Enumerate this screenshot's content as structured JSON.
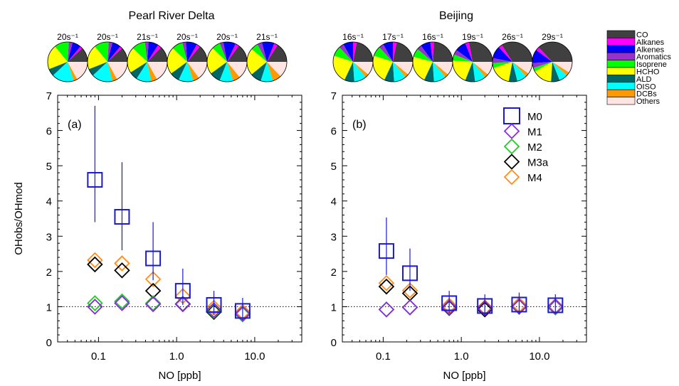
{
  "legend": {
    "categories": [
      {
        "name": "CO",
        "color": "#404040"
      },
      {
        "name": "Alkanes",
        "color": "#ff00ff"
      },
      {
        "name": "Alkenes",
        "color": "#0000ff"
      },
      {
        "name": "Aromatics",
        "color": "#9932cc"
      },
      {
        "name": "Isoprene",
        "color": "#00ff00"
      },
      {
        "name": "HCHO",
        "color": "#ffff00"
      },
      {
        "name": "ALD",
        "color": "#006666"
      },
      {
        "name": "OISO",
        "color": "#00ffff"
      },
      {
        "name": "DCBs",
        "color": "#ff9900"
      },
      {
        "name": "Others",
        "color": "#ffe4e1"
      }
    ]
  },
  "chart_data": [
    {
      "type": "scatter",
      "region": "Pearl River Delta",
      "panel_label": "(a)",
      "xlabel": "NO [ppb]",
      "ylabel": "OHobs/OHmod",
      "x_scale": "log",
      "xlim": [
        0.03,
        40
      ],
      "ylim": [
        0,
        7
      ],
      "x_ticks": [
        "0.1",
        "1.0",
        "10.0"
      ],
      "y_ticks": [
        "0",
        "1",
        "2",
        "3",
        "4",
        "5",
        "6",
        "7"
      ],
      "reference_line_y": 1,
      "x": [
        0.09,
        0.2,
        0.5,
        1.2,
        3.0,
        7.0
      ],
      "series": [
        {
          "name": "M0",
          "color": "#1a1acc",
          "marker": "square",
          "values": [
            4.6,
            3.55,
            2.37,
            1.45,
            1.05,
            0.88
          ],
          "err_low": [
            3.4,
            2.6,
            1.75,
            1.05,
            0.78,
            0.62
          ],
          "err_high": [
            6.7,
            5.1,
            3.4,
            2.08,
            1.45,
            1.25
          ]
        },
        {
          "name": "M1",
          "color": "#8a2be2",
          "marker": "diamond",
          "values": [
            1.0,
            1.1,
            1.07,
            1.07,
            0.9,
            0.8
          ]
        },
        {
          "name": "M2",
          "color": "#22cc22",
          "marker": "diamond",
          "values": [
            1.1,
            1.15,
            1.1,
            1.07,
            0.88,
            0.78
          ]
        },
        {
          "name": "M3a",
          "color": "#000000",
          "marker": "diamond",
          "values": [
            2.2,
            2.03,
            1.45,
            1.08,
            0.85,
            0.8
          ]
        },
        {
          "name": "M4",
          "color": "#ff8c1a",
          "marker": "diamond",
          "values": [
            2.32,
            2.23,
            1.78,
            1.3,
            0.97,
            0.85
          ]
        }
      ],
      "pies": {
        "labels": [
          "20s⁻¹",
          "20s⁻¹",
          "21s⁻¹",
          "20s⁻¹",
          "20s⁻¹",
          "21s⁻¹"
        ],
        "fractions": [
          [
            0.12,
            0.02,
            0.07,
            0.03,
            0.12,
            0.2,
            0.06,
            0.18,
            0.03,
            0.17
          ],
          [
            0.12,
            0.02,
            0.07,
            0.03,
            0.12,
            0.2,
            0.06,
            0.17,
            0.04,
            0.17
          ],
          [
            0.13,
            0.03,
            0.08,
            0.03,
            0.11,
            0.21,
            0.07,
            0.12,
            0.05,
            0.17
          ],
          [
            0.14,
            0.03,
            0.09,
            0.03,
            0.09,
            0.22,
            0.08,
            0.12,
            0.05,
            0.15
          ],
          [
            0.15,
            0.03,
            0.1,
            0.03,
            0.07,
            0.22,
            0.09,
            0.11,
            0.06,
            0.14
          ],
          [
            0.16,
            0.03,
            0.1,
            0.04,
            0.06,
            0.22,
            0.09,
            0.1,
            0.07,
            0.13
          ]
        ]
      }
    },
    {
      "type": "scatter",
      "region": "Beijing",
      "panel_label": "(b)",
      "xlabel": "NO [ppb]",
      "ylabel": "",
      "x_scale": "log",
      "xlim": [
        0.03,
        40
      ],
      "ylim": [
        0,
        7
      ],
      "x_ticks": [
        "0.1",
        "1.0",
        "10.0"
      ],
      "y_ticks": [
        "0",
        "1",
        "2",
        "3",
        "4",
        "5",
        "6",
        "7"
      ],
      "reference_line_y": 1,
      "x": [
        0.11,
        0.22,
        0.7,
        2.0,
        5.5,
        16.0
      ],
      "series": [
        {
          "name": "M0",
          "color": "#1a1acc",
          "marker": "square",
          "values": [
            2.58,
            1.95,
            1.1,
            1.02,
            1.06,
            1.04
          ],
          "err_low": [
            1.9,
            1.45,
            0.82,
            0.75,
            0.78,
            0.8
          ],
          "err_high": [
            3.53,
            2.65,
            1.45,
            1.35,
            1.4,
            1.35
          ]
        },
        {
          "name": "M1",
          "color": "#8a2be2",
          "marker": "diamond",
          "values": [
            0.92,
            0.98,
            0.98,
            0.96,
            1.0,
            1.0
          ]
        },
        {
          "name": "M2",
          "color": "#22cc22",
          "marker": "diamond",
          "values": [
            0.92,
            0.98,
            0.98,
            0.96,
            1.0,
            0.98
          ]
        },
        {
          "name": "M3a",
          "color": "#000000",
          "marker": "diamond",
          "values": [
            1.57,
            1.38,
            0.96,
            0.92,
            1.0,
            0.98
          ]
        },
        {
          "name": "M4",
          "color": "#ff8c1a",
          "marker": "diamond",
          "values": [
            1.67,
            1.46,
            1.03,
            0.98,
            1.05,
            1.02
          ]
        }
      ],
      "pies": {
        "labels": [
          "16s⁻¹",
          "17s⁻¹",
          "16s⁻¹",
          "19s⁻¹",
          "26s⁻¹",
          "29s⁻¹"
        ],
        "fractions": [
          [
            0.22,
            0.03,
            0.08,
            0.04,
            0.08,
            0.23,
            0.08,
            0.1,
            0.03,
            0.11
          ],
          [
            0.22,
            0.03,
            0.08,
            0.04,
            0.08,
            0.23,
            0.08,
            0.1,
            0.03,
            0.11
          ],
          [
            0.24,
            0.03,
            0.08,
            0.04,
            0.07,
            0.22,
            0.08,
            0.1,
            0.03,
            0.11
          ],
          [
            0.28,
            0.03,
            0.09,
            0.04,
            0.05,
            0.2,
            0.08,
            0.09,
            0.03,
            0.11
          ],
          [
            0.34,
            0.03,
            0.1,
            0.04,
            0.04,
            0.17,
            0.07,
            0.08,
            0.03,
            0.1
          ],
          [
            0.37,
            0.03,
            0.11,
            0.04,
            0.03,
            0.16,
            0.07,
            0.07,
            0.03,
            0.09
          ]
        ]
      }
    }
  ]
}
